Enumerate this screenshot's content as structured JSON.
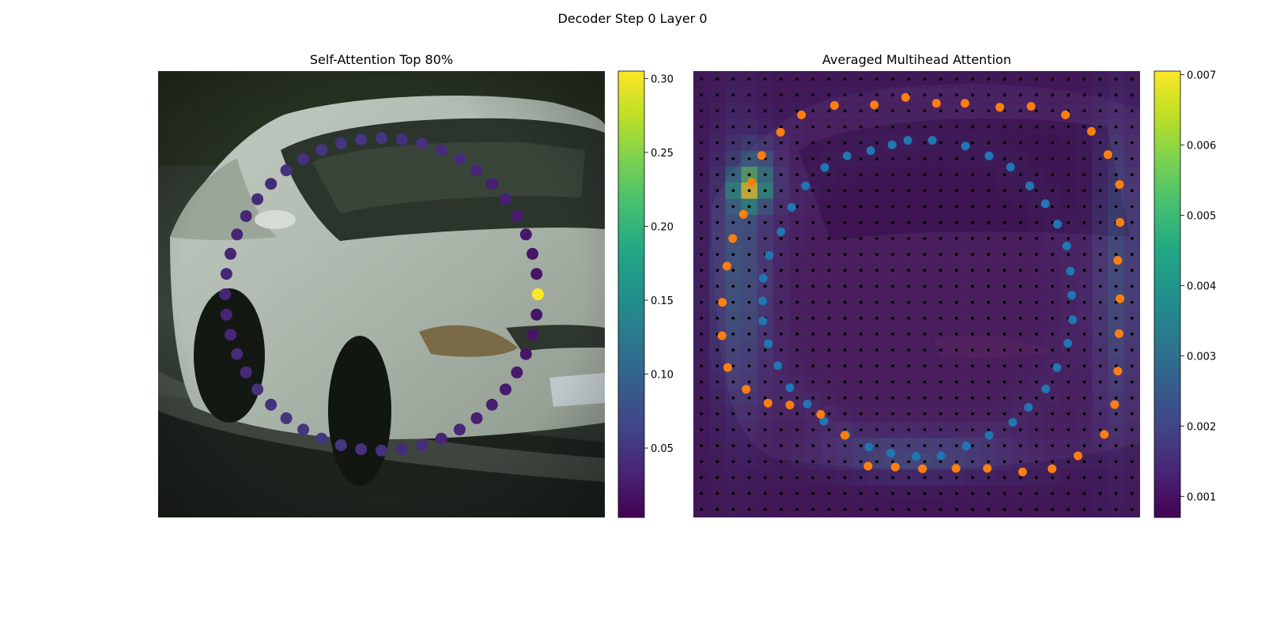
{
  "figure": {
    "title": "Decoder Step 0 Layer 0"
  },
  "chart_data": [
    {
      "type": "scatter",
      "title": "Self-Attention Top 80%",
      "background": "photo of a silver car",
      "xlim": [
        0,
        1
      ],
      "ylim": [
        0,
        1
      ],
      "colormap": "viridis",
      "colorbar": {
        "ticks": [
          "0.05",
          "0.10",
          "0.15",
          "0.20",
          "0.25",
          "0.30"
        ],
        "tick_values": [
          0.05,
          0.1,
          0.15,
          0.2,
          0.25,
          0.3
        ],
        "range": [
          0.003,
          0.305
        ]
      },
      "points": {
        "cx": 0.5,
        "cy": 0.5,
        "r": 0.7,
        "count": 48,
        "values": [
          0.305,
          0.02,
          0.02,
          0.022,
          0.025,
          0.03,
          0.03,
          0.035,
          0.04,
          0.04,
          0.045,
          0.045,
          0.05,
          0.05,
          0.05,
          0.05,
          0.045,
          0.045,
          0.04,
          0.04,
          0.035,
          0.035,
          0.035,
          0.035,
          0.035,
          0.035,
          0.035,
          0.04,
          0.04,
          0.045,
          0.045,
          0.05,
          0.05,
          0.05,
          0.05,
          0.045,
          0.045,
          0.04,
          0.04,
          0.035,
          0.035,
          0.03,
          0.03,
          0.025,
          0.025,
          0.02,
          0.02,
          0.02
        ]
      }
    },
    {
      "type": "heatmap",
      "title": "Averaged Multihead Attention",
      "colormap": "viridis",
      "grid": [
        28,
        28
      ],
      "colorbar": {
        "ticks": [
          "0.001",
          "0.002",
          "0.003",
          "0.004",
          "0.005",
          "0.006",
          "0.007"
        ],
        "tick_values": [
          0.001,
          0.002,
          0.003,
          0.004,
          0.005,
          0.006,
          0.007
        ],
        "range": [
          0.0007,
          0.00705
        ]
      },
      "series": [
        {
          "color": "#1f77b4",
          "points": [
            [
              0.535,
              0.155
            ],
            [
              0.48,
              0.155
            ],
            [
              0.445,
              0.165
            ],
            [
              0.397,
              0.178
            ],
            [
              0.344,
              0.19
            ],
            [
              0.294,
              0.216
            ],
            [
              0.251,
              0.257
            ],
            [
              0.22,
              0.305
            ],
            [
              0.196,
              0.36
            ],
            [
              0.17,
              0.413
            ],
            [
              0.156,
              0.464
            ],
            [
              0.155,
              0.515
            ],
            [
              0.155,
              0.56
            ],
            [
              0.168,
              0.611
            ],
            [
              0.189,
              0.66
            ],
            [
              0.216,
              0.709
            ],
            [
              0.255,
              0.746
            ],
            [
              0.292,
              0.784
            ],
            [
              0.342,
              0.815
            ],
            [
              0.393,
              0.842
            ],
            [
              0.442,
              0.856
            ],
            [
              0.499,
              0.863
            ],
            [
              0.554,
              0.862
            ],
            [
              0.611,
              0.84
            ],
            [
              0.662,
              0.816
            ],
            [
              0.715,
              0.787
            ],
            [
              0.75,
              0.753
            ],
            [
              0.789,
              0.712
            ],
            [
              0.814,
              0.664
            ],
            [
              0.838,
              0.61
            ],
            [
              0.849,
              0.557
            ],
            [
              0.847,
              0.502
            ],
            [
              0.844,
              0.448
            ],
            [
              0.836,
              0.392
            ],
            [
              0.815,
              0.343
            ],
            [
              0.788,
              0.297
            ],
            [
              0.753,
              0.257
            ],
            [
              0.71,
              0.215
            ],
            [
              0.662,
              0.19
            ],
            [
              0.609,
              0.168
            ]
          ]
        },
        {
          "color": "#ff7f0e",
          "points": [
            [
              0.544,
              0.072
            ],
            [
              0.608,
              0.072
            ],
            [
              0.686,
              0.081
            ],
            [
              0.756,
              0.079
            ],
            [
              0.833,
              0.098
            ],
            [
              0.891,
              0.135
            ],
            [
              0.928,
              0.187
            ],
            [
              0.954,
              0.254
            ],
            [
              0.955,
              0.339
            ],
            [
              0.95,
              0.424
            ],
            [
              0.955,
              0.51
            ],
            [
              0.953,
              0.588
            ],
            [
              0.95,
              0.672
            ],
            [
              0.943,
              0.747
            ],
            [
              0.92,
              0.814
            ],
            [
              0.861,
              0.862
            ],
            [
              0.803,
              0.891
            ],
            [
              0.737,
              0.898
            ],
            [
              0.658,
              0.89
            ],
            [
              0.588,
              0.89
            ],
            [
              0.513,
              0.891
            ],
            [
              0.452,
              0.887
            ],
            [
              0.391,
              0.885
            ],
            [
              0.339,
              0.816
            ],
            [
              0.285,
              0.769
            ],
            [
              0.216,
              0.748
            ],
            [
              0.167,
              0.744
            ],
            [
              0.118,
              0.713
            ],
            [
              0.077,
              0.664
            ],
            [
              0.064,
              0.593
            ],
            [
              0.065,
              0.518
            ],
            [
              0.075,
              0.437
            ],
            [
              0.088,
              0.375
            ],
            [
              0.112,
              0.321
            ],
            [
              0.13,
              0.249
            ],
            [
              0.153,
              0.189
            ],
            [
              0.195,
              0.137
            ],
            [
              0.242,
              0.098
            ],
            [
              0.316,
              0.077
            ],
            [
              0.405,
              0.076
            ],
            [
              0.475,
              0.059
            ]
          ]
        }
      ]
    }
  ]
}
